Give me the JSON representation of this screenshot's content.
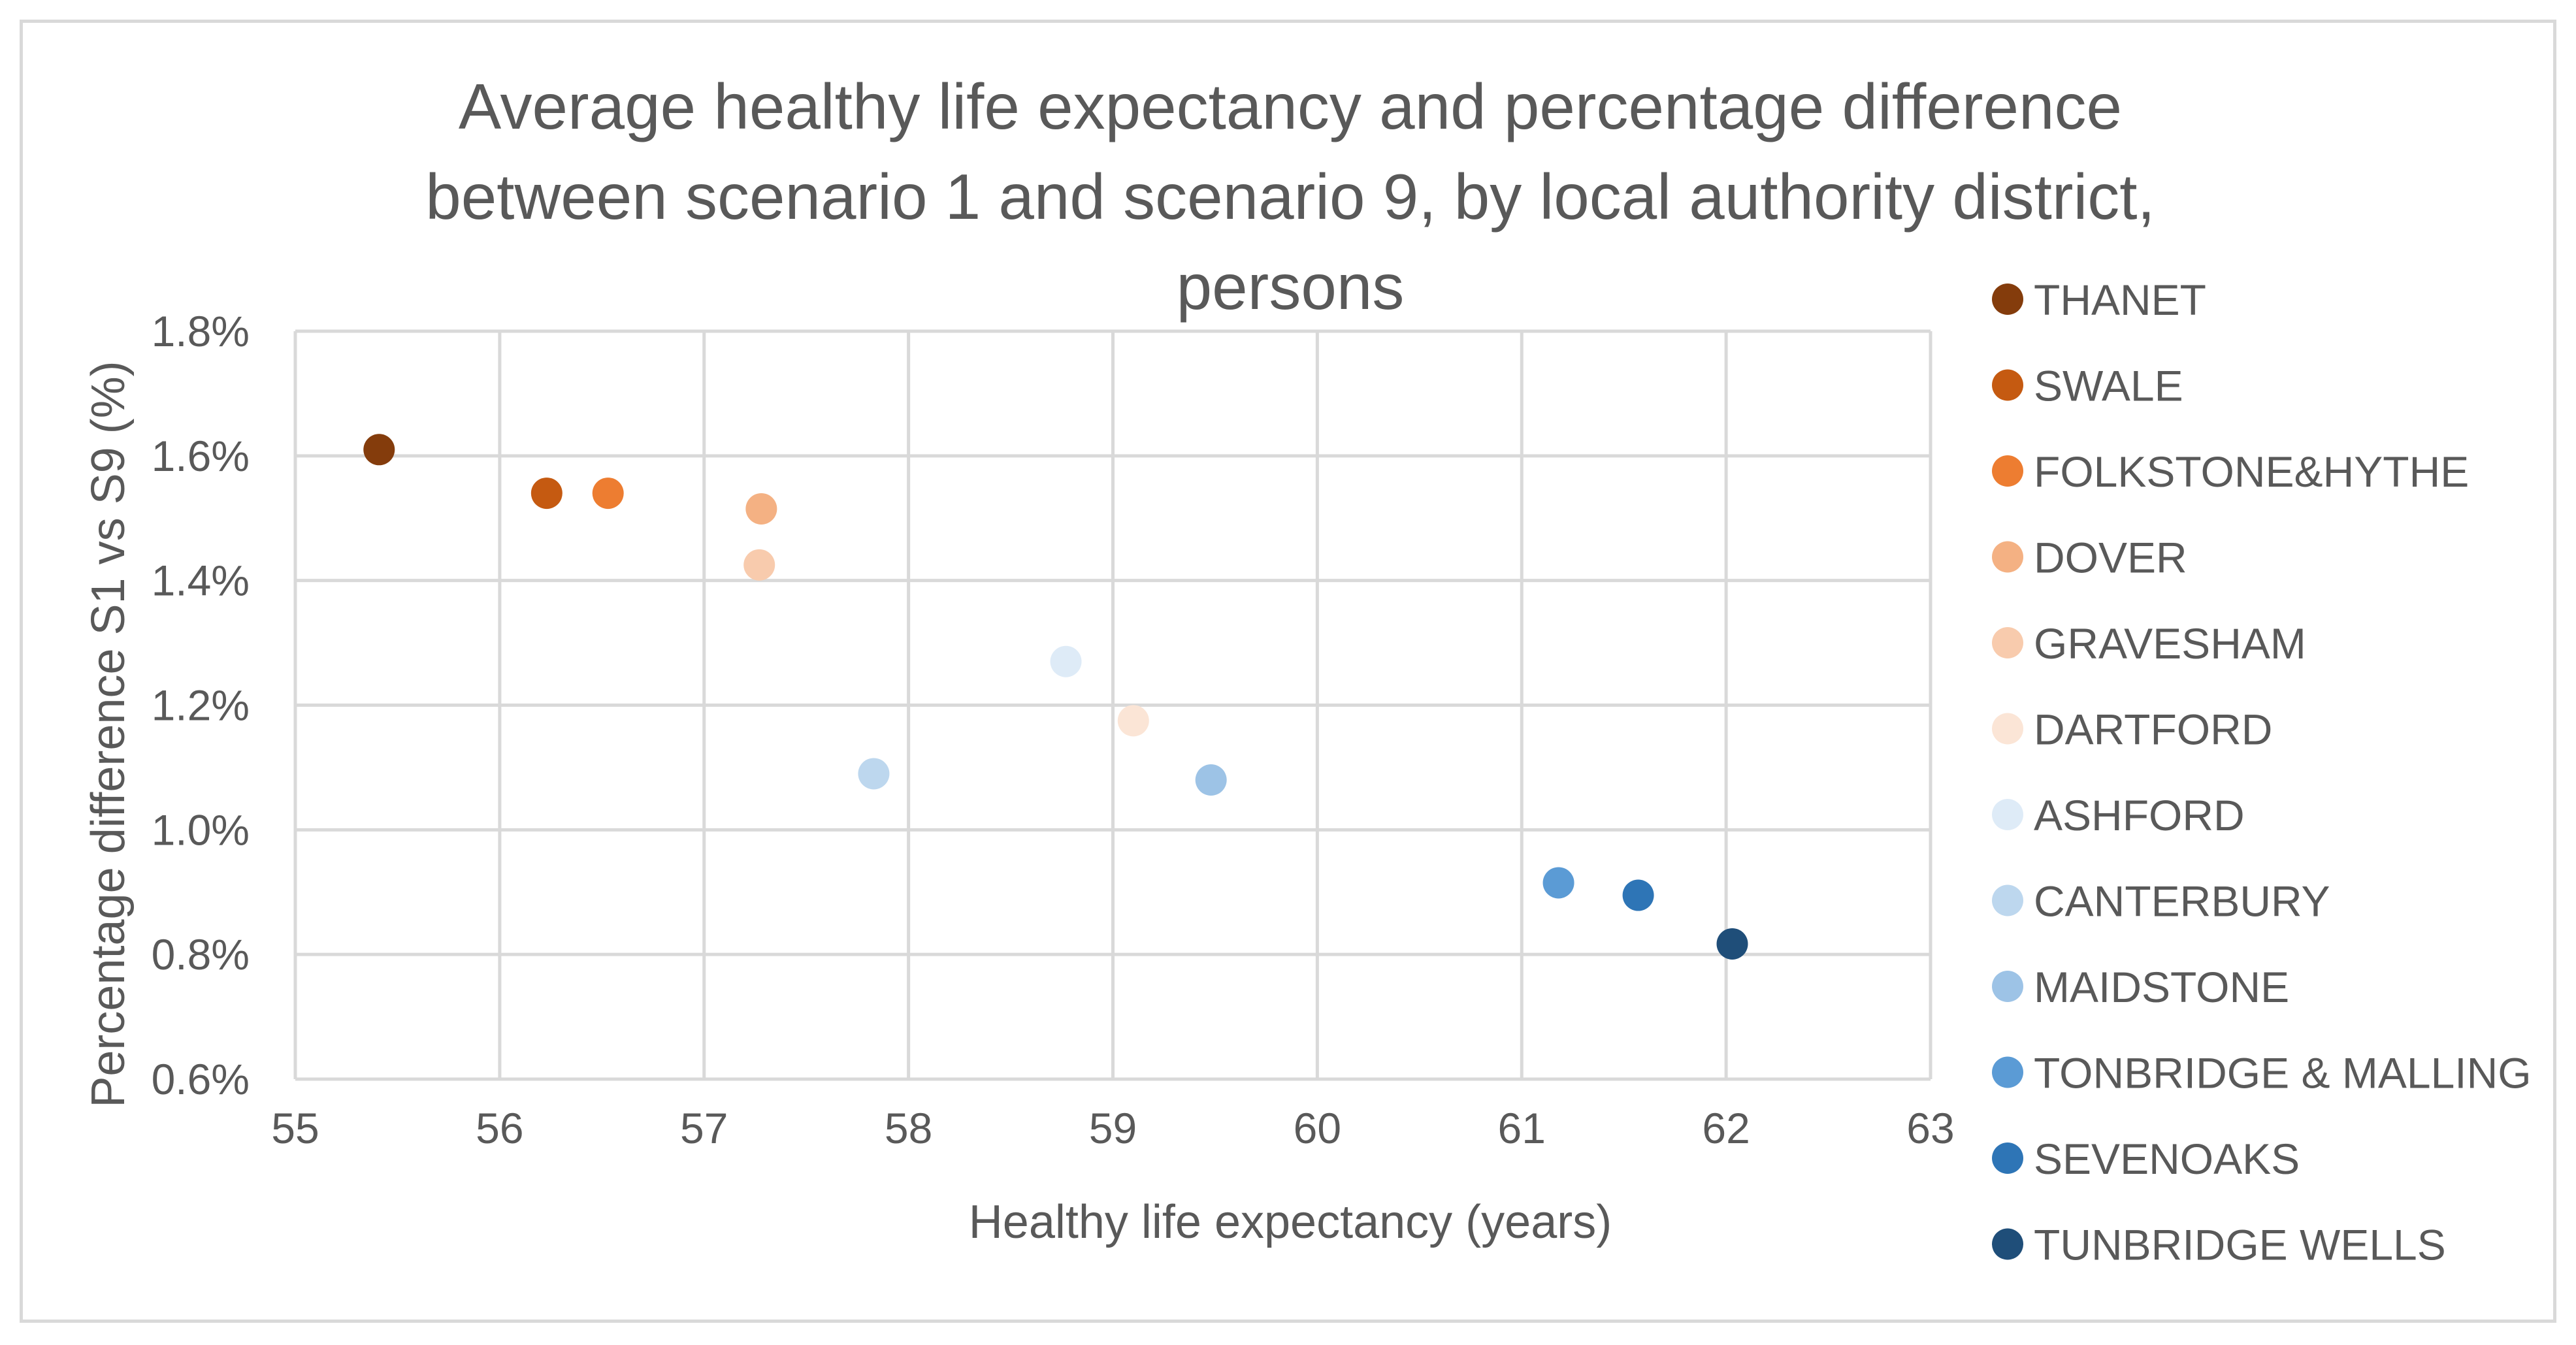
{
  "chart_data": {
    "type": "scatter",
    "title_lines": [
      "Average healthy life expectancy and percentage difference",
      "between scenario 1 and scenario 9, by local authority district,",
      "persons"
    ],
    "xlabel": "Healthy life expectancy (years)",
    "ylabel": "Percentage difference S1 vs S9 (%)",
    "xlim": [
      55,
      63
    ],
    "ylim": [
      0.6,
      1.8
    ],
    "x_ticks": [
      55,
      56,
      57,
      58,
      59,
      60,
      61,
      62,
      63
    ],
    "x_tick_labels": [
      "55",
      "56",
      "57",
      "58",
      "59",
      "60",
      "61",
      "62",
      "63"
    ],
    "y_ticks": [
      0.6,
      0.8,
      1.0,
      1.2,
      1.4,
      1.6,
      1.8
    ],
    "y_tick_labels": [
      "0.6%",
      "0.8%",
      "1.0%",
      "1.2%",
      "1.4%",
      "1.6%",
      "1.8%"
    ],
    "grid": true,
    "legend_position": "right",
    "series": [
      {
        "name": "THANET",
        "color": "#843C0C",
        "x": 55.41,
        "y": 1.61
      },
      {
        "name": "SWALE",
        "color": "#C55A11",
        "x": 56.23,
        "y": 1.54
      },
      {
        "name": "FOLKSTONE&HYTHE",
        "color": "#ED7D31",
        "x": 56.53,
        "y": 1.54
      },
      {
        "name": "DOVER",
        "color": "#F4B183",
        "x": 57.28,
        "y": 1.515
      },
      {
        "name": "GRAVESHAM",
        "color": "#F8CBAD",
        "x": 57.27,
        "y": 1.425
      },
      {
        "name": "DARTFORD",
        "color": "#FBE5D6",
        "x": 59.1,
        "y": 1.175
      },
      {
        "name": "ASHFORD",
        "color": "#DEEBF7",
        "x": 58.77,
        "y": 1.27
      },
      {
        "name": "CANTERBURY",
        "color": "#BDD7EE",
        "x": 57.83,
        "y": 1.09
      },
      {
        "name": "MAIDSTONE",
        "color": "#9DC3E6",
        "x": 59.48,
        "y": 1.08
      },
      {
        "name": "TONBRIDGE & MALLING",
        "color": "#5B9BD5",
        "x": 61.18,
        "y": 0.915
      },
      {
        "name": "SEVENOAKS",
        "color": "#2E75B6",
        "x": 61.57,
        "y": 0.895
      },
      {
        "name": "TUNBRIDGE WELLS",
        "color": "#1F4E79",
        "x": 62.03,
        "y": 0.817
      }
    ]
  }
}
